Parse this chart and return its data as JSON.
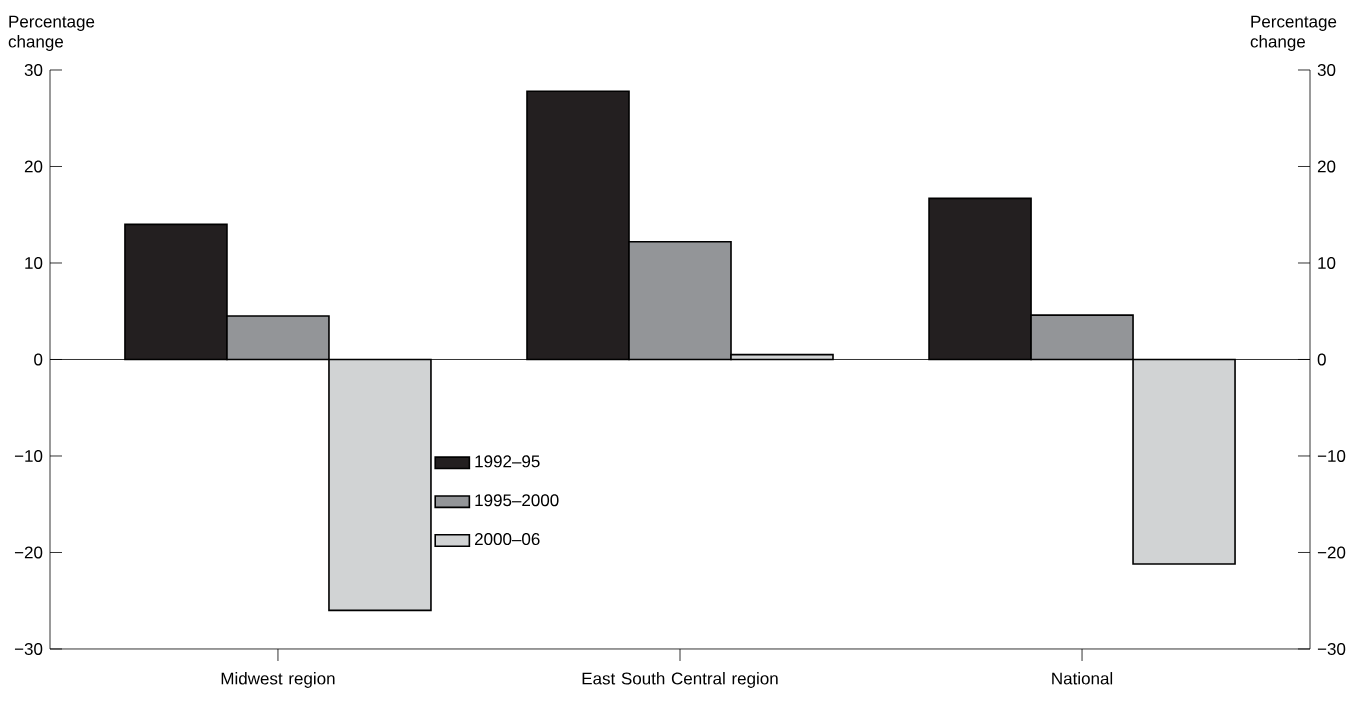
{
  "chart_data": {
    "type": "bar",
    "ylabel": "Percentage change",
    "y2label": "Percentage change",
    "categories": [
      "Midwest region",
      "East South Central region",
      "National"
    ],
    "series": [
      {
        "name": "1992–95",
        "color": "#231f20",
        "values": [
          14.0,
          27.8,
          16.7
        ]
      },
      {
        "name": "1995–2000",
        "color": "#939598",
        "values": [
          4.5,
          12.2,
          4.6
        ]
      },
      {
        "name": "2000–06",
        "color": "#d1d3d4",
        "values": [
          -26.0,
          0.5,
          -21.2
        ]
      }
    ],
    "ylim": [
      -30,
      30
    ],
    "yticks": [
      {
        "value": -30,
        "label": "−30"
      },
      {
        "value": -20,
        "label": "−20"
      },
      {
        "value": -10,
        "label": "−10"
      },
      0,
      10,
      20,
      30
    ],
    "y2lim": [
      -30,
      30
    ],
    "y2ticks": [
      {
        "value": -30,
        "label": "−30"
      },
      {
        "value": -20,
        "label": "−20"
      },
      {
        "value": -10,
        "label": "−10"
      },
      0,
      10,
      20,
      30
    ],
    "ref_lines": [
      {
        "axis": "y",
        "value": 0
      }
    ],
    "legend": "center"
  }
}
